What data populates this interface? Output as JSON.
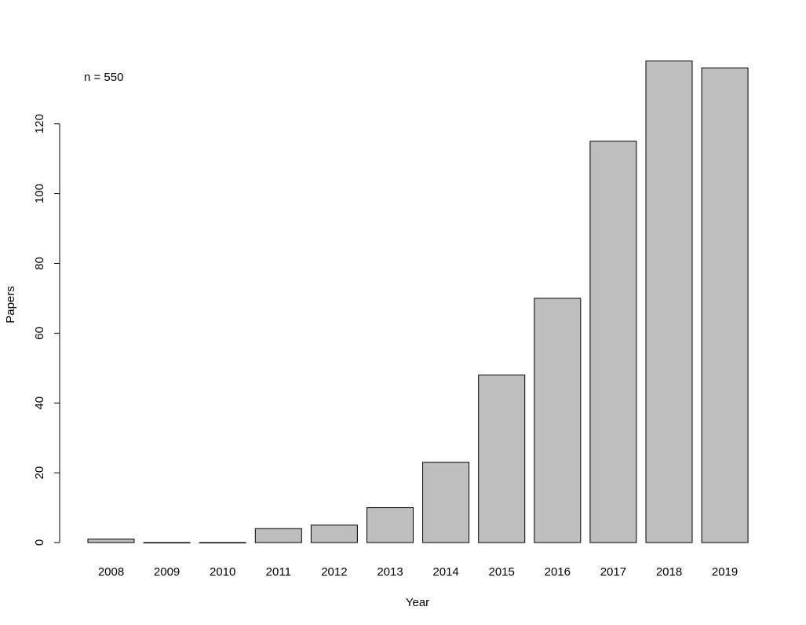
{
  "chart_data": {
    "type": "bar",
    "title": "",
    "xlabel": "Year",
    "ylabel": "Papers",
    "annotation": "n = 550",
    "categories": [
      "2008",
      "2009",
      "2010",
      "2011",
      "2012",
      "2013",
      "2014",
      "2015",
      "2016",
      "2017",
      "2018",
      "2019"
    ],
    "values": [
      1,
      0,
      0,
      4,
      5,
      10,
      23,
      48,
      70,
      115,
      138,
      136
    ],
    "ylim": [
      0,
      138
    ],
    "yticks": [
      0,
      20,
      40,
      60,
      80,
      100,
      120
    ],
    "bar_fill": "#bebebe",
    "bar_stroke": "#000000",
    "grid": false,
    "legend": "none"
  }
}
